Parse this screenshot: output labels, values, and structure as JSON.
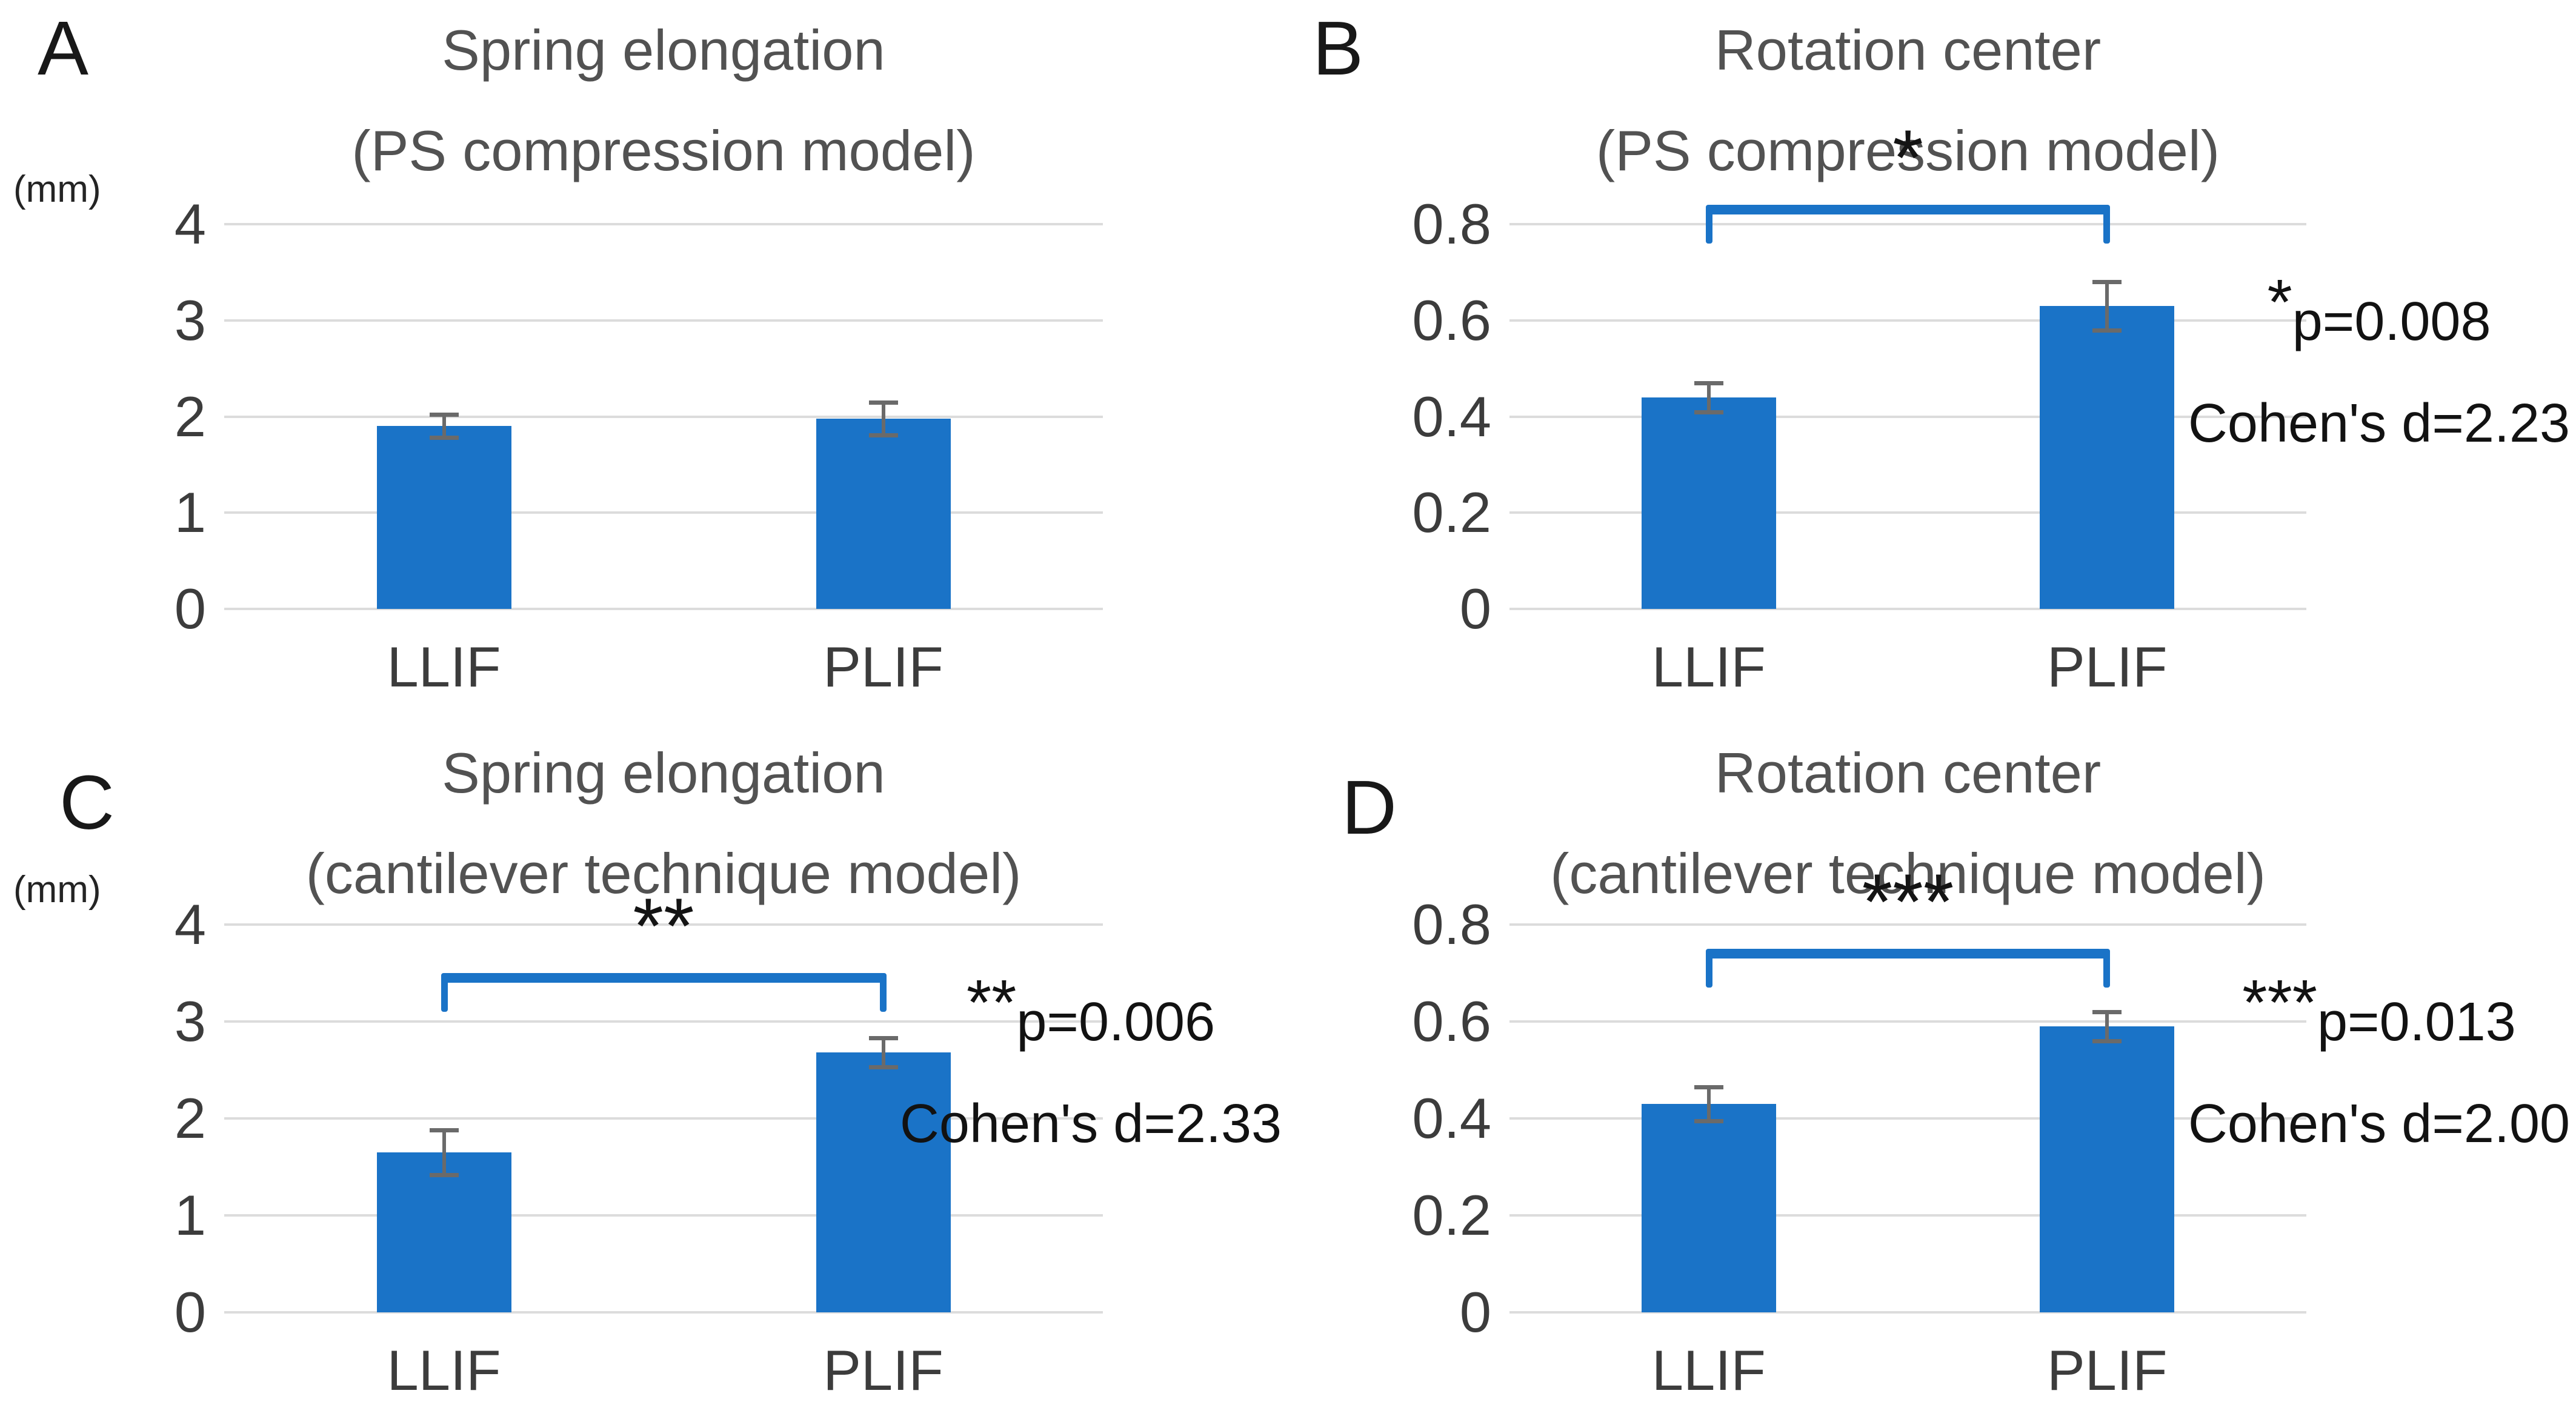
{
  "colors": {
    "bar": "#1A73C7",
    "bracket": "#1A73C7",
    "gridline": "#DCDCDC",
    "error_bar": "#6A6A6A",
    "title_text": "#525252",
    "tick_text": "#3C3C3C",
    "annotation_text": "#121212"
  },
  "chart_data": [
    {
      "panel_label": "A",
      "type": "bar",
      "title": "Spring elongation",
      "subtitle": "(PS compression model)",
      "unit": "(mm)",
      "xlabel": "",
      "ylabel": "(mm)",
      "categories": [
        "LLIF",
        "PLIF"
      ],
      "values": [
        1.9,
        1.98
      ],
      "errors": [
        0.12,
        0.17
      ],
      "ylim": [
        0,
        4
      ],
      "yticks": [
        0,
        1,
        2,
        3,
        4
      ],
      "grid": true,
      "legend": null,
      "significance": null,
      "annotation": null
    },
    {
      "panel_label": "B",
      "type": "bar",
      "title": "Rotation center",
      "subtitle": "(PS compression model)",
      "unit": "",
      "xlabel": "",
      "ylabel": "",
      "categories": [
        "LLIF",
        "PLIF"
      ],
      "values": [
        0.44,
        0.63
      ],
      "errors": [
        0.03,
        0.05
      ],
      "ylim": [
        0,
        0.8
      ],
      "yticks": [
        0,
        0.2,
        0.4,
        0.6,
        0.8
      ],
      "grid": true,
      "legend": null,
      "significance": {
        "stars": "*",
        "bracket_y": 0.84
      },
      "annotation": {
        "stars": "*",
        "p_value": "p=0.008",
        "effect_size": "Cohen's d=2.23"
      }
    },
    {
      "panel_label": "C",
      "type": "bar",
      "title": "Spring elongation",
      "subtitle": "(cantilever technique model)",
      "unit": "(mm)",
      "xlabel": "",
      "ylabel": "(mm)",
      "categories": [
        "LLIF",
        "PLIF"
      ],
      "values": [
        1.65,
        2.68
      ],
      "errors": [
        0.23,
        0.15
      ],
      "ylim": [
        0,
        4
      ],
      "yticks": [
        0,
        1,
        2,
        3,
        4
      ],
      "grid": true,
      "legend": null,
      "significance": {
        "stars": "**",
        "bracket_y": 3.5
      },
      "annotation": {
        "stars": "**",
        "p_value": "p=0.006",
        "effect_size": "Cohen's d=2.33"
      }
    },
    {
      "panel_label": "D",
      "type": "bar",
      "title": "Rotation center",
      "subtitle": "(cantilever technique model)",
      "unit": "",
      "xlabel": "",
      "ylabel": "",
      "categories": [
        "LLIF",
        "PLIF"
      ],
      "values": [
        0.43,
        0.59
      ],
      "errors": [
        0.035,
        0.03
      ],
      "ylim": [
        0,
        0.8
      ],
      "yticks": [
        0,
        0.2,
        0.4,
        0.6,
        0.8
      ],
      "grid": true,
      "legend": null,
      "significance": {
        "stars": "***",
        "bracket_y": 0.75
      },
      "annotation": {
        "stars": "***",
        "p_value": "p=0.013",
        "effect_size": "Cohen's d=2.00"
      }
    }
  ]
}
